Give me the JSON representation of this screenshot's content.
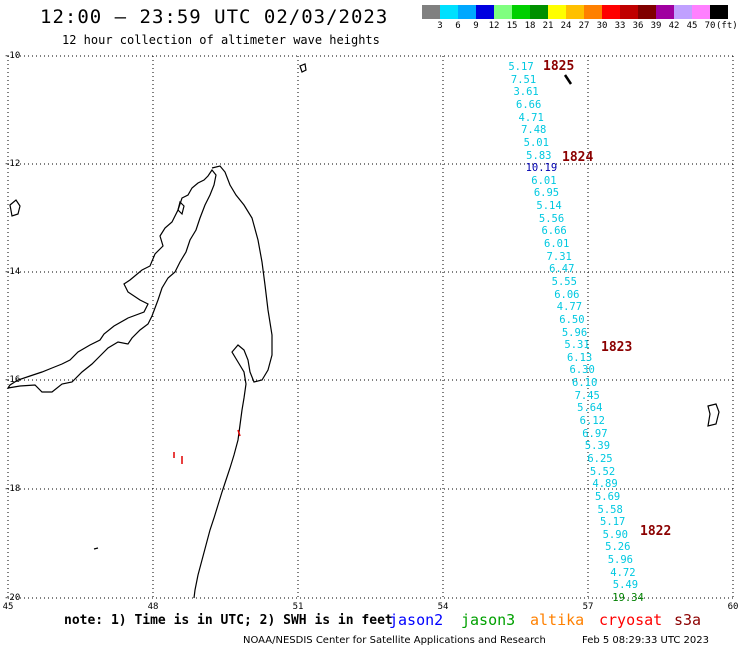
{
  "header": {
    "title": "12:00 — 23:59 UTC 02/03/2023",
    "subtitle": "12 hour collection of altimeter wave heights"
  },
  "colorbar": {
    "colors": [
      "#808080",
      "#00e0ff",
      "#00a8ff",
      "#0000e0",
      "#80ff80",
      "#00d000",
      "#009000",
      "#ffff00",
      "#ffc000",
      "#ff8000",
      "#ff0000",
      "#c00000",
      "#800000",
      "#a000a0",
      "#c0a0ff",
      "#ff80ff",
      "#000000"
    ],
    "labels": [
      "3",
      "6",
      "9",
      "12",
      "15",
      "18",
      "21",
      "24",
      "27",
      "30",
      "33",
      "36",
      "39",
      "42",
      "45",
      "70"
    ],
    "unit": "(ft)"
  },
  "map": {
    "lat_labels": [
      "-10",
      "-12",
      "-14",
      "-16",
      "-18",
      "-20"
    ],
    "lon_labels": [
      "45",
      "48",
      "51",
      "54",
      "57",
      "60"
    ]
  },
  "passes": [
    "1825",
    "1824",
    "1823",
    "1822"
  ],
  "wave_heights": [
    {
      "value": "5.17",
      "swh": 5.17,
      "color": "#00c8e0"
    },
    {
      "value": "7.51",
      "swh": 7.51,
      "color": "#00c8e0"
    },
    {
      "value": "3.61",
      "swh": 3.61,
      "color": "#00c8e0"
    },
    {
      "value": "6.66",
      "swh": 6.66,
      "color": "#00c8e0"
    },
    {
      "value": "4.71",
      "swh": 4.71,
      "color": "#00c8e0"
    },
    {
      "value": "7.48",
      "swh": 7.48,
      "color": "#00c8e0"
    },
    {
      "value": "5.01",
      "swh": 5.01,
      "color": "#00c8e0"
    },
    {
      "value": "5.83",
      "swh": 5.83,
      "color": "#00c8e0"
    },
    {
      "value": "10.19",
      "swh": 10.19,
      "color": "#0000b0"
    },
    {
      "value": "6.01",
      "swh": 6.01,
      "color": "#00c8e0"
    },
    {
      "value": "6.95",
      "swh": 6.95,
      "color": "#00c8e0"
    },
    {
      "value": "5.14",
      "swh": 5.14,
      "color": "#00c8e0"
    },
    {
      "value": "5.56",
      "swh": 5.56,
      "color": "#00c8e0"
    },
    {
      "value": "6.66",
      "swh": 6.66,
      "color": "#00c8e0"
    },
    {
      "value": "6.01",
      "swh": 6.01,
      "color": "#00c8e0"
    },
    {
      "value": "7.31",
      "swh": 7.31,
      "color": "#00c8e0"
    },
    {
      "value": "6.47",
      "swh": 6.47,
      "color": "#00c8e0"
    },
    {
      "value": "5.55",
      "swh": 5.55,
      "color": "#00c8e0"
    },
    {
      "value": "6.06",
      "swh": 6.06,
      "color": "#00c8e0"
    },
    {
      "value": "4.77",
      "swh": 4.77,
      "color": "#00c8e0"
    },
    {
      "value": "6.50",
      "swh": 6.5,
      "color": "#00c8e0"
    },
    {
      "value": "5.96",
      "swh": 5.96,
      "color": "#00c8e0"
    },
    {
      "value": "5.31",
      "swh": 5.31,
      "color": "#00c8e0"
    },
    {
      "value": "6.13",
      "swh": 6.13,
      "color": "#00c8e0"
    },
    {
      "value": "6.30",
      "swh": 6.3,
      "color": "#00c8e0"
    },
    {
      "value": "6.10",
      "swh": 6.1,
      "color": "#00c8e0"
    },
    {
      "value": "7.45",
      "swh": 7.45,
      "color": "#00c8e0"
    },
    {
      "value": "5.64",
      "swh": 5.64,
      "color": "#00c8e0"
    },
    {
      "value": "6.12",
      "swh": 6.12,
      "color": "#00c8e0"
    },
    {
      "value": "6.97",
      "swh": 6.97,
      "color": "#00c8e0"
    },
    {
      "value": "5.39",
      "swh": 5.39,
      "color": "#00c8e0"
    },
    {
      "value": "6.25",
      "swh": 6.25,
      "color": "#00c8e0"
    },
    {
      "value": "5.52",
      "swh": 5.52,
      "color": "#00c8e0"
    },
    {
      "value": "4.89",
      "swh": 4.89,
      "color": "#00c8e0"
    },
    {
      "value": "5.69",
      "swh": 5.69,
      "color": "#00c8e0"
    },
    {
      "value": "5.58",
      "swh": 5.58,
      "color": "#00c8e0"
    },
    {
      "value": "5.17",
      "swh": 5.17,
      "color": "#00c8e0"
    },
    {
      "value": "5.90",
      "swh": 5.9,
      "color": "#00c8e0"
    },
    {
      "value": "5.26",
      "swh": 5.26,
      "color": "#00c8e0"
    },
    {
      "value": "5.96",
      "swh": 5.96,
      "color": "#00c8e0"
    },
    {
      "value": "4.72",
      "swh": 4.72,
      "color": "#00c8e0"
    },
    {
      "value": "5.49",
      "swh": 5.49,
      "color": "#00c8e0"
    },
    {
      "value": "19.34",
      "swh": 19.34,
      "color": "#008000"
    }
  ],
  "footer": {
    "note": "note: 1) Time is in UTC; 2) SWH is in feet",
    "satellites": [
      {
        "name": "jason2",
        "color": "#0000ff"
      },
      {
        "name": "jason3",
        "color": "#00a000"
      },
      {
        "name": "altika",
        "color": "#ff8000"
      },
      {
        "name": "cryosat",
        "color": "#ff0000"
      },
      {
        "name": "s3a",
        "color": "#8b0000"
      }
    ],
    "credit": "NOAA/NESDIS Center for Satellite Applications and Research",
    "timestamp": "Feb  5 08:29:33 UTC 2023"
  }
}
